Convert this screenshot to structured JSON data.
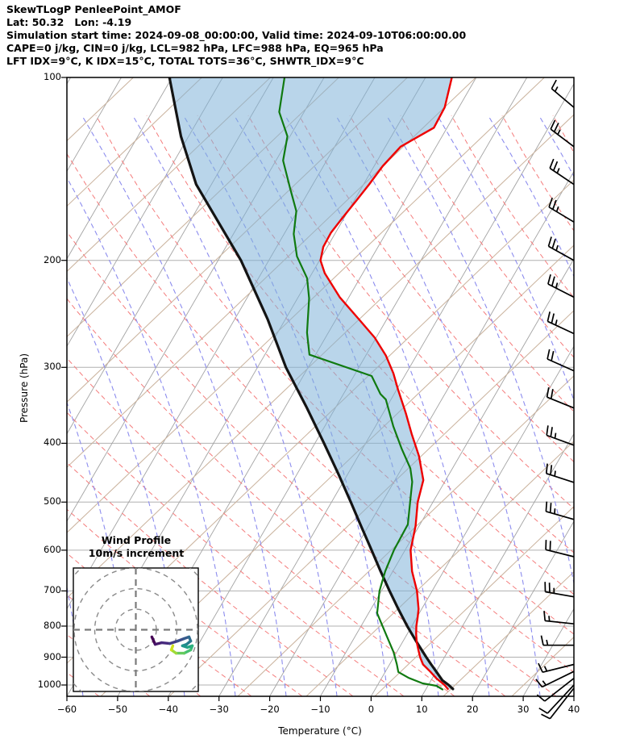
{
  "header": {
    "line1": "SkewTLogP PenleePoint_AMOF",
    "line2": "Lat: 50.32   Lon: -4.19",
    "line3": "Simulation start time: 2024-09-08_00:00:00, Valid time: 2024-09-10T06:00:00.00",
    "line4": "CAPE=0 j/kg, CIN=0 j/kg, LCL=982 hPa, LFC=988 hPa, EQ=965 hPa",
    "line5": "LFT IDX=9°C, K IDX=15°C, TOTAL TOTS=36°C, SHWTR_IDX=9°C"
  },
  "axes": {
    "xlabel": "Temperature (°C)",
    "ylabel": "Pressure (hPa)",
    "x_tick_labels": [
      "−60",
      "−50",
      "−40",
      "−30",
      "−20",
      "−10",
      "0",
      "10",
      "20",
      "30",
      "40"
    ],
    "x_tick_values": [
      -60,
      -50,
      -40,
      -30,
      -20,
      -10,
      0,
      10,
      20,
      30,
      40
    ],
    "y_tick_labels": [
      "100",
      "200",
      "300",
      "400",
      "500",
      "600",
      "700",
      "800",
      "900",
      "1000"
    ],
    "y_tick_values": [
      100,
      200,
      300,
      400,
      500,
      600,
      700,
      800,
      900,
      1000
    ]
  },
  "inset": {
    "title_line1": "Wind Profile",
    "title_line2": "10m/s increment",
    "ring_increment_ms": 10
  },
  "chart_data": {
    "type": "skewt-log-p",
    "pressure_range_hPa": [
      100,
      1050
    ],
    "temperature_range_C": [
      -60,
      40
    ],
    "grid": {
      "isotherm_step_C": 10,
      "pressure_gridlines_hPa": [
        100,
        200,
        300,
        400,
        500,
        600,
        700,
        800,
        900,
        1000
      ]
    },
    "temperature_profile": [
      [
        1015,
        14.3
      ],
      [
        1000,
        13.2
      ],
      [
        975,
        10.8
      ],
      [
        950,
        8.8
      ],
      [
        925,
        6.6
      ],
      [
        900,
        5.2
      ],
      [
        875,
        4.0
      ],
      [
        850,
        2.8
      ],
      [
        825,
        1.8
      ],
      [
        800,
        0.9
      ],
      [
        775,
        0.2
      ],
      [
        750,
        -0.6
      ],
      [
        700,
        -3.0
      ],
      [
        650,
        -6.2
      ],
      [
        600,
        -8.9
      ],
      [
        547,
        -10.7
      ],
      [
        500,
        -13.0
      ],
      [
        460,
        -14.4
      ],
      [
        420,
        -18.0
      ],
      [
        386,
        -22.0
      ],
      [
        357,
        -25.5
      ],
      [
        326,
        -29.8
      ],
      [
        307,
        -32.5
      ],
      [
        287,
        -36.0
      ],
      [
        268,
        -40.3
      ],
      [
        251,
        -45.2
      ],
      [
        230,
        -51.8
      ],
      [
        210,
        -57.5
      ],
      [
        200,
        -59.8
      ],
      [
        190,
        -60.8
      ],
      [
        180,
        -60.9
      ],
      [
        170,
        -60.3
      ],
      [
        160,
        -59.6
      ],
      [
        150,
        -58.9
      ],
      [
        140,
        -58.3
      ],
      [
        130,
        -57.0
      ],
      [
        121,
        -52.6
      ],
      [
        112,
        -52.8
      ],
      [
        100,
        -54.8
      ]
    ],
    "dewpoint_profile": [
      [
        1017,
        13.3
      ],
      [
        1003,
        11.7
      ],
      [
        994,
        8.7
      ],
      [
        974,
        5.4
      ],
      [
        952,
        2.6
      ],
      [
        924,
        1.4
      ],
      [
        883,
        -0.6
      ],
      [
        834,
        -3.6
      ],
      [
        762,
        -8.3
      ],
      [
        700,
        -10.4
      ],
      [
        650,
        -11.5
      ],
      [
        600,
        -12.2
      ],
      [
        544,
        -12.4
      ],
      [
        500,
        -14.5
      ],
      [
        463,
        -16.4
      ],
      [
        440,
        -18.3
      ],
      [
        409,
        -22.2
      ],
      [
        375,
        -26.5
      ],
      [
        339,
        -31.0
      ],
      [
        332,
        -32.7
      ],
      [
        310,
        -36.5
      ],
      [
        286,
        -51.2
      ],
      [
        263,
        -54.2
      ],
      [
        231,
        -57.7
      ],
      [
        214,
        -60.4
      ],
      [
        197,
        -64.9
      ],
      [
        181,
        -68.1
      ],
      [
        166,
        -70.2
      ],
      [
        152,
        -74.1
      ],
      [
        137,
        -78.6
      ],
      [
        125,
        -80.5
      ],
      [
        114,
        -84.9
      ],
      [
        100,
        -87.8
      ]
    ],
    "parcel_profile": [
      [
        1015,
        15.3
      ],
      [
        1000,
        14.0
      ],
      [
        982,
        12.2
      ],
      [
        950,
        10.0
      ],
      [
        925,
        8.2
      ],
      [
        900,
        6.4
      ],
      [
        850,
        2.8
      ],
      [
        800,
        -0.9
      ],
      [
        750,
        -4.6
      ],
      [
        700,
        -8.4
      ],
      [
        650,
        -12.4
      ],
      [
        600,
        -16.6
      ],
      [
        550,
        -21.2
      ],
      [
        500,
        -26.2
      ],
      [
        450,
        -31.8
      ],
      [
        400,
        -38.2
      ],
      [
        350,
        -45.6
      ],
      [
        300,
        -54.4
      ],
      [
        250,
        -63.5
      ],
      [
        200,
        -75.5
      ],
      [
        150,
        -93.0
      ],
      [
        125,
        -101.5
      ],
      [
        100,
        -110.5
      ]
    ],
    "wind_barbs": [
      {
        "pressure": 112,
        "speed_ms": 15,
        "angle_deg": 40,
        "len": 36
      },
      {
        "pressure": 130,
        "speed_ms": 25,
        "angle_deg": 37,
        "len": 36
      },
      {
        "pressure": 150,
        "speed_ms": 25,
        "angle_deg": 34,
        "len": 36
      },
      {
        "pressure": 173,
        "speed_ms": 25,
        "angle_deg": 31,
        "len": 36
      },
      {
        "pressure": 200,
        "speed_ms": 25,
        "angle_deg": 29,
        "len": 36
      },
      {
        "pressure": 230,
        "speed_ms": 25,
        "angle_deg": 27,
        "len": 36
      },
      {
        "pressure": 264,
        "speed_ms": 25,
        "angle_deg": 25,
        "len": 36
      },
      {
        "pressure": 304,
        "speed_ms": 20,
        "angle_deg": 24,
        "len": 36
      },
      {
        "pressure": 350,
        "speed_ms": 20,
        "angle_deg": 22,
        "len": 36
      },
      {
        "pressure": 403,
        "speed_ms": 25,
        "angle_deg": 20,
        "len": 36
      },
      {
        "pressure": 464,
        "speed_ms": 25,
        "angle_deg": 18,
        "len": 36
      },
      {
        "pressure": 534,
        "speed_ms": 25,
        "angle_deg": 16,
        "len": 36
      },
      {
        "pressure": 615,
        "speed_ms": 20,
        "angle_deg": 14,
        "len": 36
      },
      {
        "pressure": 716,
        "speed_ms": 25,
        "angle_deg": 10,
        "len": 36
      },
      {
        "pressure": 793,
        "speed_ms": 15,
        "angle_deg": 6,
        "len": 36
      },
      {
        "pressure": 860,
        "speed_ms": 15,
        "angle_deg": 0,
        "len": 38
      },
      {
        "pressure": 925,
        "speed_ms": 15,
        "angle_deg": -14,
        "len": 40
      },
      {
        "pressure": 950,
        "speed_ms": 15,
        "angle_deg": -26,
        "len": 44
      },
      {
        "pressure": 975,
        "speed_ms": 10,
        "angle_deg": -38,
        "len": 46
      },
      {
        "pressure": 1000,
        "speed_ms": 10,
        "angle_deg": -47,
        "len": 48
      },
      {
        "pressure": 1012,
        "speed_ms": 10,
        "angle_deg": -52,
        "len": 48
      }
    ],
    "hodograph_trace_uv_ms": [
      [
        7.8,
        3.5
      ],
      [
        9.4,
        7.1
      ],
      [
        12.5,
        6.3
      ],
      [
        16.5,
        6.7
      ],
      [
        20.4,
        5.5
      ],
      [
        23.5,
        4.3
      ],
      [
        25.9,
        3.5
      ],
      [
        26.7,
        5.5
      ],
      [
        24.7,
        7.1
      ],
      [
        22.7,
        7.8
      ],
      [
        25.1,
        8.6
      ],
      [
        27.5,
        7.8
      ],
      [
        26.7,
        9.8
      ],
      [
        23.5,
        11.4
      ],
      [
        19.6,
        11.4
      ],
      [
        17.3,
        9.8
      ],
      [
        18.0,
        7.8
      ]
    ],
    "colors": {
      "temperature": "#ee0000",
      "dewpoint": "#107a10",
      "parcel": "#141414",
      "cape_shade": "#7fb2d9",
      "isotherm_grid": "#a3a3a3",
      "pressure_grid": "#b0b0b0",
      "dry_adiabat_dashed": "#f47c7c",
      "moist_adiabat_dashed": "#8c8cee",
      "mixing_line": "#cbb49f",
      "barb": "#000000",
      "viridis_trace": [
        "#440154",
        "#46186a",
        "#46297d",
        "#433d84",
        "#3d4e8a",
        "#365c8d",
        "#2f6b8e",
        "#29798e",
        "#23888e",
        "#1f968b",
        "#21a585",
        "#2eb37c",
        "#46c06f",
        "#65cb5e",
        "#9fda3a",
        "#d0e11c"
      ]
    }
  }
}
